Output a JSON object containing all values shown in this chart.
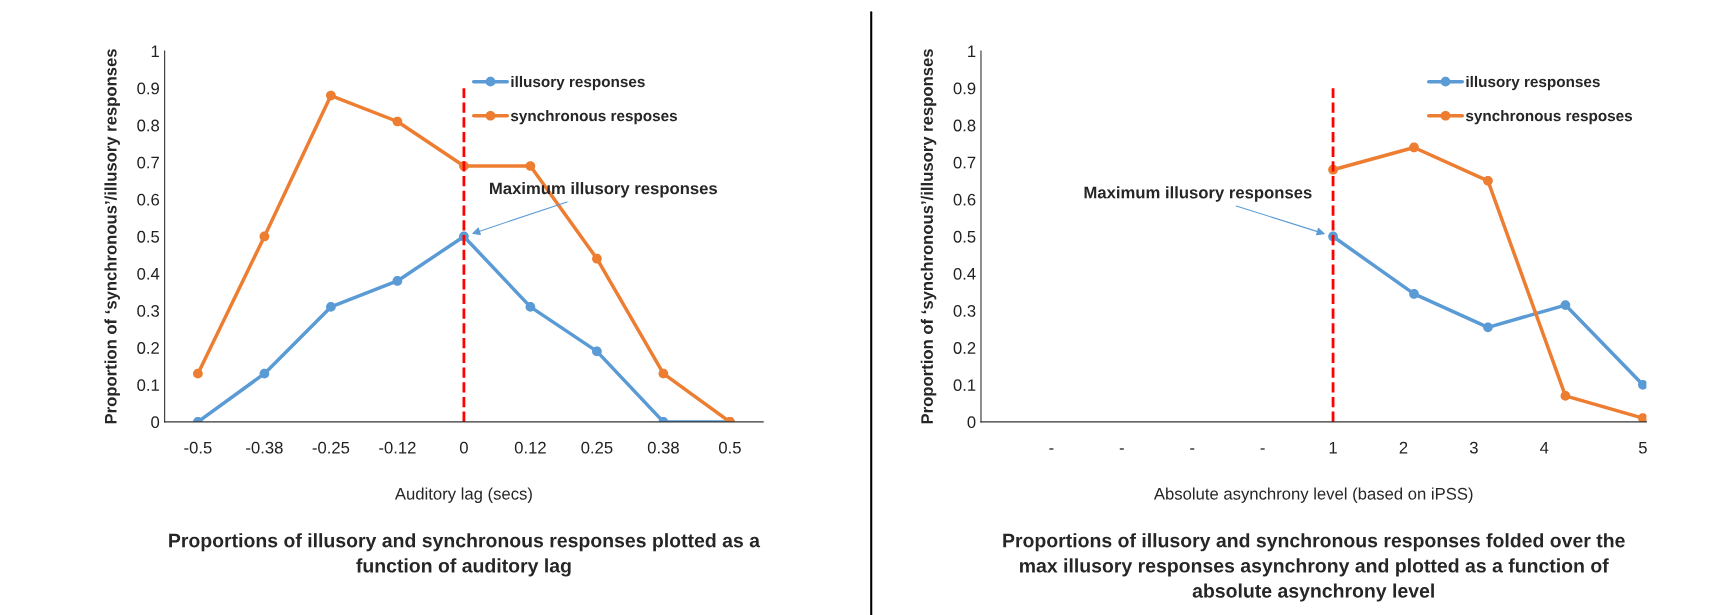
{
  "chart_data": [
    {
      "type": "line",
      "title": "Proportions of illusory and synchronous responses plotted as a\nfunction of auditory lag",
      "xlabel": "Auditory lag (secs)",
      "ylabel": "Proportion of ‘synchronous’/illusory responses",
      "categories": [
        "-0.5",
        "-0.38",
        "-0.25",
        "-0.12",
        "0",
        "0.12",
        "0.25",
        "0.38",
        "0.5"
      ],
      "series": [
        {
          "name": "illusory responses",
          "color": "#5b9bd5",
          "values": [
            0,
            0.13,
            0.31,
            0.38,
            0.5,
            0.31,
            0.19,
            0,
            0
          ]
        },
        {
          "name": "synchronous resposes",
          "color": "#ed7d31",
          "values": [
            0.13,
            0.5,
            0.88,
            0.81,
            0.69,
            0.69,
            0.44,
            0.13,
            0
          ]
        }
      ],
      "ylim": [
        0,
        1
      ],
      "yticks": [
        0,
        0.1,
        0.2,
        0.3,
        0.4,
        0.5,
        0.6,
        0.7,
        0.8,
        0.9,
        1
      ],
      "ref_lines": [
        {
          "axis": "x",
          "value": "0",
          "color": "#ff0000",
          "line_style": "dashed"
        }
      ],
      "annotations": [
        {
          "text": "Maximum illusory responses",
          "x": "0",
          "y": 0.5
        }
      ],
      "grid": false,
      "legend": "top right",
      "marker": "circle",
      "line_style": "solid"
    },
    {
      "type": "line",
      "title": "Proportions of illusory and synchronous responses folded over the\nmax illusory responses asynchrony and plotted as a function of\nabsolute asynchrony level",
      "xlabel": "Absolute asynchrony level (based on iPSS)",
      "ylabel": "Proportion of ‘synchronous’/illusory responses",
      "x": [
        1,
        2.15,
        3.2,
        4.3,
        5.4
      ],
      "series": [
        {
          "name": "illusory responses",
          "color": "#5b9bd5",
          "values": [
            0.5,
            0.345,
            0.255,
            0.315,
            0.1
          ]
        },
        {
          "name": "synchronous resposes",
          "color": "#ed7d31",
          "values": [
            0.68,
            0.74,
            0.65,
            0.07,
            0.01
          ]
        }
      ],
      "xlim": [
        -4,
        5.45
      ],
      "xticks": [
        {
          "value": -3,
          "label": "-"
        },
        {
          "value": -2,
          "label": "-"
        },
        {
          "value": -1,
          "label": "-"
        },
        {
          "value": 0,
          "label": "-"
        },
        1,
        2,
        3,
        4,
        {
          "value": 5.4,
          "label": "5"
        }
      ],
      "ylim": [
        0,
        1
      ],
      "yticks": [
        0,
        0.1,
        0.2,
        0.3,
        0.4,
        0.5,
        0.6,
        0.7,
        0.8,
        0.9,
        1
      ],
      "ref_lines": [
        {
          "axis": "x",
          "value": 1,
          "color": "#ff0000",
          "line_style": "dashed"
        }
      ],
      "annotations": [
        {
          "text": "Maximum illusory responses",
          "x": 1,
          "y": 0.5
        }
      ],
      "grid": false,
      "legend": "top right",
      "marker": "circle",
      "line_style": "solid"
    }
  ]
}
